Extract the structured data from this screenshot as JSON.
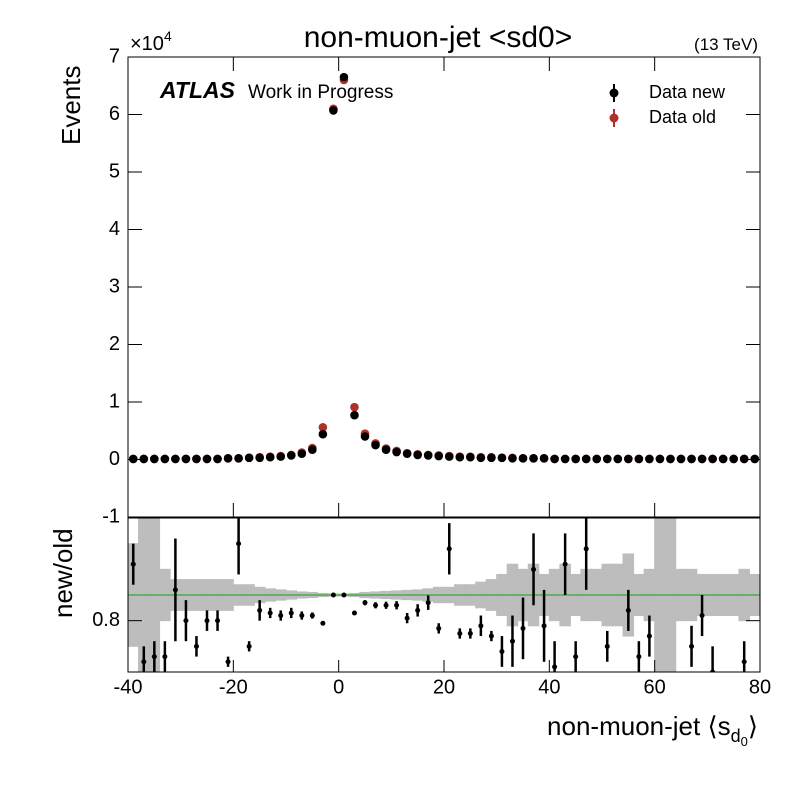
{
  "chart_data": [
    {
      "type": "scatter",
      "title": "non-muon-jet <sd0>",
      "energy": "(13 TeV)",
      "experiment": "ATLAS",
      "status": "Work in Progress",
      "y_label": "Events",
      "y_multiplier": {
        "base": "×10",
        "exponent": "4"
      },
      "xlim": [
        -40,
        80
      ],
      "ylim": [
        -1,
        7
      ],
      "yticks": [
        -1,
        0,
        1,
        2,
        3,
        4,
        5,
        6,
        7
      ],
      "legend": "upper right",
      "x": [
        -39,
        -37,
        -35,
        -33,
        -31,
        -29,
        -27,
        -25,
        -23,
        -21,
        -19,
        -17,
        -15,
        -13,
        -11,
        -9,
        -7,
        -5,
        -3,
        -1,
        1,
        3,
        5,
        7,
        9,
        11,
        13,
        15,
        17,
        19,
        21,
        23,
        25,
        27,
        29,
        31,
        33,
        35,
        37,
        39,
        41,
        43,
        45,
        47,
        49,
        51,
        53,
        55,
        57,
        59,
        61,
        63,
        65,
        67,
        69,
        71,
        73,
        75,
        77,
        79
      ],
      "series": [
        {
          "name": "Data new",
          "color": "#000000",
          "values": [
            0.01,
            0.01,
            0.01,
            0.01,
            0.01,
            0.01,
            0.01,
            0.01,
            0.01,
            0.02,
            0.02,
            0.03,
            0.03,
            0.04,
            0.05,
            0.07,
            0.1,
            0.17,
            0.44,
            6.07,
            6.65,
            0.77,
            0.4,
            0.25,
            0.17,
            0.13,
            0.1,
            0.08,
            0.07,
            0.06,
            0.05,
            0.04,
            0.04,
            0.03,
            0.03,
            0.03,
            0.02,
            0.02,
            0.02,
            0.02,
            0.01,
            0.01,
            0.01,
            0.01,
            0.01,
            0.01,
            0.01,
            0.01,
            0.01,
            0.01,
            0.01,
            0.01,
            0.01,
            0.01,
            0.01,
            0.01,
            0.01,
            0.01,
            0.01,
            0.01
          ]
        },
        {
          "name": "Data old",
          "color": "#b0302a",
          "values": [
            0.01,
            0.01,
            0.01,
            0.01,
            0.01,
            0.01,
            0.01,
            0.01,
            0.01,
            0.02,
            0.02,
            0.03,
            0.04,
            0.05,
            0.06,
            0.08,
            0.12,
            0.2,
            0.56,
            6.1,
            6.6,
            0.91,
            0.45,
            0.28,
            0.19,
            0.15,
            0.11,
            0.09,
            0.08,
            0.07,
            0.06,
            0.05,
            0.05,
            0.04,
            0.04,
            0.03,
            0.03,
            0.02,
            0.02,
            0.02,
            0.01,
            0.01,
            0.01,
            0.01,
            0.01,
            0.01,
            0.01,
            0.01,
            0.01,
            0.01,
            0.01,
            0.01,
            0.01,
            0.01,
            0.01,
            0.01,
            0.01,
            0.01,
            0.01,
            0.01
          ]
        }
      ]
    },
    {
      "type": "ratio",
      "y_label": "new/old",
      "x_label": {
        "main": "non-muon-jet ⟨s",
        "sub": "d",
        "subsub": "0",
        "close": "⟩"
      },
      "xlim": [
        -40,
        80
      ],
      "xticks": [
        -40,
        -20,
        0,
        20,
        40,
        60,
        80
      ],
      "ylim": [
        0.7,
        1.0
      ],
      "yticks": [
        0.8
      ],
      "reference": 0.85,
      "reference_color": "#33aa33",
      "band_color": "#bdbdbd",
      "color": "#000000",
      "x": [
        -39,
        -37,
        -35,
        -33,
        -31,
        -29,
        -27,
        -25,
        -23,
        -21,
        -19,
        -17,
        -15,
        -13,
        -11,
        -9,
        -7,
        -5,
        -3,
        -1,
        1,
        3,
        5,
        7,
        9,
        11,
        13,
        15,
        17,
        19,
        21,
        23,
        25,
        27,
        29,
        31,
        33,
        35,
        37,
        39,
        41,
        43,
        45,
        47,
        49,
        51,
        53,
        55,
        57,
        59,
        61,
        63,
        65,
        67,
        69,
        71,
        73,
        75,
        77,
        79
      ],
      "values": [
        0.91,
        0.72,
        0.73,
        0.73,
        0.86,
        0.8,
        0.75,
        0.8,
        0.8,
        0.72,
        0.95,
        0.75,
        0.82,
        0.815,
        0.81,
        0.815,
        0.81,
        0.81,
        0.795,
        0.85,
        0.85,
        0.815,
        0.835,
        0.83,
        0.83,
        0.83,
        0.805,
        0.82,
        0.835,
        0.785,
        0.94,
        0.775,
        0.775,
        0.79,
        0.77,
        0.74,
        0.76,
        0.785,
        0.9,
        0.79,
        0.71,
        0.91,
        0.73,
        0.94,
        null,
        0.75,
        null,
        0.82,
        0.73,
        0.77,
        null,
        null,
        null,
        0.75,
        0.81,
        0.7,
        null,
        null,
        0.72,
        null
      ],
      "errors": [
        0.04,
        0.03,
        0.03,
        0.03,
        0.1,
        0.04,
        0.02,
        0.02,
        0.02,
        0.01,
        0.06,
        0.01,
        0.02,
        0.01,
        0.01,
        0.01,
        0.008,
        0.006,
        0.004,
        0.002,
        0.002,
        0.003,
        0.005,
        0.006,
        0.007,
        0.008,
        0.01,
        0.012,
        0.014,
        0.01,
        0.05,
        0.01,
        0.01,
        0.02,
        0.01,
        0.03,
        0.05,
        0.06,
        0.07,
        0.07,
        0.05,
        0.06,
        0.03,
        0.08,
        null,
        0.03,
        null,
        0.04,
        0.03,
        0.04,
        null,
        null,
        null,
        0.04,
        0.04,
        0.05,
        null,
        null,
        0.04,
        null
      ],
      "band": [
        0.1,
        0.15,
        0.15,
        0.05,
        0.03,
        0.03,
        0.03,
        0.03,
        0.03,
        0.03,
        0.02,
        0.02,
        0.015,
        0.012,
        0.01,
        0.008,
        0.006,
        0.005,
        0.003,
        0.002,
        0.002,
        0.003,
        0.005,
        0.006,
        0.007,
        0.008,
        0.009,
        0.01,
        0.012,
        0.015,
        0.015,
        0.02,
        0.02,
        0.025,
        0.03,
        0.04,
        0.06,
        0.05,
        0.06,
        0.04,
        0.05,
        0.06,
        0.04,
        0.05,
        0.05,
        0.06,
        0.06,
        0.08,
        0.04,
        0.05,
        0.15,
        0.15,
        0.05,
        0.05,
        0.04,
        0.04,
        0.04,
        0.04,
        0.05,
        0.04
      ]
    }
  ]
}
